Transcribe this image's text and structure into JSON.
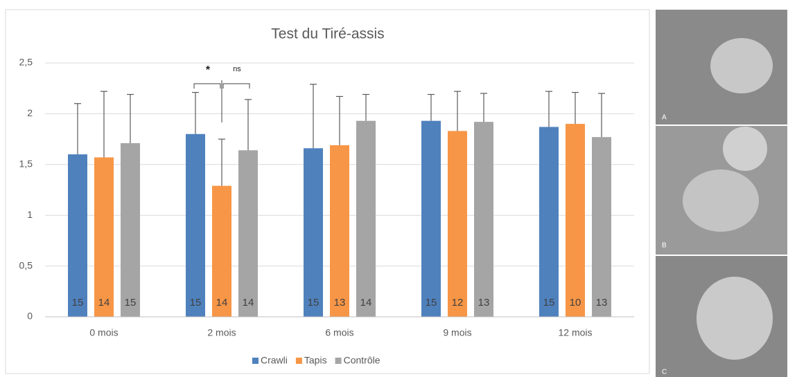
{
  "chart_data": {
    "type": "bar",
    "title": "Test du Tiré-assis",
    "categories": [
      "0 mois",
      "2 mois",
      "6 mois",
      "9 mois",
      "12 mois"
    ],
    "series": [
      {
        "name": "Crawli",
        "color": "#4f81bd",
        "values": [
          1.6,
          1.8,
          1.66,
          1.93,
          1.87
        ],
        "errors": [
          0.5,
          0.41,
          0.63,
          0.26,
          0.35
        ],
        "n": [
          15,
          15,
          15,
          15,
          15
        ]
      },
      {
        "name": "Tapis",
        "color": "#f79646",
        "values": [
          1.57,
          1.29,
          1.69,
          1.83,
          1.9
        ],
        "errors": [
          0.65,
          0.46,
          0.48,
          0.39,
          0.31
        ],
        "n": [
          14,
          14,
          13,
          12,
          10
        ]
      },
      {
        "name": "Contrôle",
        "color": "#a5a5a5",
        "values": [
          1.71,
          1.64,
          1.93,
          1.92,
          1.77
        ],
        "errors": [
          0.48,
          0.5,
          0.26,
          0.28,
          0.43
        ],
        "n": [
          15,
          14,
          14,
          13,
          13
        ]
      }
    ],
    "ylim": [
      0,
      2.5
    ],
    "yticks": [
      0,
      {
        "value": 0.5,
        "label": "0,5"
      },
      1,
      {
        "value": 1.5,
        "label": "1,5"
      },
      2,
      {
        "value": 2.5,
        "label": "2,5"
      }
    ],
    "grid": true,
    "legend": "bottom",
    "annotations": [
      "*",
      "ns"
    ]
  },
  "photos": [
    "A",
    "B",
    "C"
  ]
}
